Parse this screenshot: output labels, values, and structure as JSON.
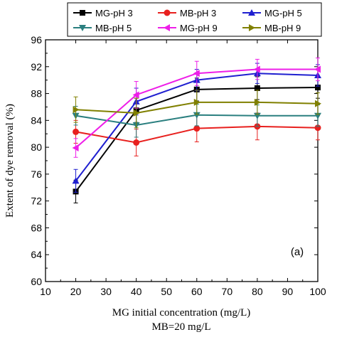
{
  "chart_data": {
    "type": "line",
    "x": [
      20,
      40,
      60,
      80,
      100
    ],
    "xlabel": "MG initial concentration (mg/L)",
    "xlabel2": "MB=20 mg/L",
    "ylabel": "Extent of dye removal (%)",
    "xlim": [
      10,
      100
    ],
    "ylim": [
      60,
      96
    ],
    "xticks": [
      10,
      20,
      30,
      40,
      50,
      60,
      70,
      80,
      90,
      100
    ],
    "yticks": [
      60,
      64,
      68,
      72,
      76,
      80,
      84,
      88,
      92,
      96
    ],
    "annotation": "(a)",
    "legend_position": "top",
    "series": [
      {
        "name": "MG-pH 3",
        "color": "#000000",
        "marker": "square",
        "values": [
          73.4,
          85.5,
          88.6,
          88.8,
          88.9
        ],
        "errors": [
          1.7,
          1.8,
          1.7,
          1.7,
          1.6
        ]
      },
      {
        "name": "MB-pH 3",
        "color": "#e8201e",
        "marker": "circle",
        "values": [
          82.3,
          80.7,
          82.8,
          83.1,
          82.9
        ],
        "errors": [
          1.7,
          2.0,
          2.0,
          2.0,
          1.8
        ]
      },
      {
        "name": "MG-pH 5",
        "color": "#1f1fd0",
        "marker": "triangle-up",
        "values": [
          75.0,
          86.8,
          90.0,
          91.0,
          90.7
        ],
        "errors": [
          1.7,
          2.0,
          1.6,
          1.5,
          1.6
        ]
      },
      {
        "name": "MB-pH 5",
        "color": "#2a7f7f",
        "marker": "triangle-down",
        "values": [
          84.7,
          83.3,
          84.8,
          84.7,
          84.7
        ],
        "errors": [
          1.4,
          1.8,
          1.6,
          1.6,
          1.6
        ]
      },
      {
        "name": "MG-pH 9",
        "color": "#ee1ee8",
        "marker": "triangle-left",
        "values": [
          79.9,
          87.8,
          91.0,
          91.6,
          91.6
        ],
        "errors": [
          1.4,
          2.0,
          1.8,
          1.5,
          1.7
        ]
      },
      {
        "name": "MB-pH 9",
        "color": "#808000",
        "marker": "triangle-right",
        "values": [
          85.6,
          85.1,
          86.7,
          86.7,
          86.5
        ],
        "errors": [
          1.9,
          2.2,
          1.8,
          1.8,
          1.6
        ]
      }
    ]
  }
}
